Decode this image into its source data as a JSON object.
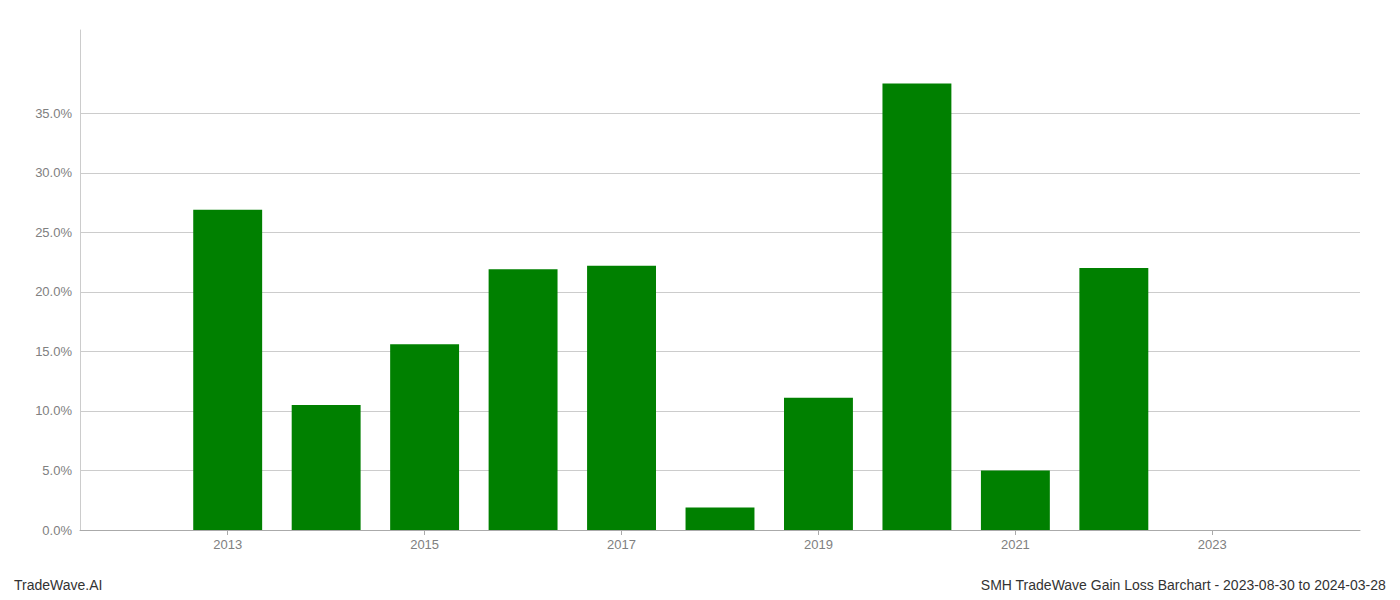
{
  "chart_data": {
    "type": "bar",
    "x": [
      2013,
      2014,
      2015,
      2016,
      2017,
      2018,
      2019,
      2020,
      2021,
      2022,
      2023
    ],
    "values": [
      0.269,
      0.105,
      0.156,
      0.219,
      0.222,
      0.019,
      0.111,
      0.375,
      0.05,
      0.22,
      0.0
    ],
    "color": "#008000",
    "xlim": [
      2011.5,
      2024.5
    ],
    "xticks": [
      2013,
      2015,
      2017,
      2019,
      2021,
      2023
    ],
    "ylim": [
      0,
      0.42
    ],
    "yticks": [
      {
        "value": 0.0,
        "label": "0.0%"
      },
      {
        "value": 0.05,
        "label": "5.0%"
      },
      {
        "value": 0.1,
        "label": "10.0%"
      },
      {
        "value": 0.15,
        "label": "15.0%"
      },
      {
        "value": 0.2,
        "label": "20.0%"
      },
      {
        "value": 0.25,
        "label": "25.0%"
      },
      {
        "value": 0.3,
        "label": "30.0%"
      },
      {
        "value": 0.35,
        "label": "35.0%"
      }
    ],
    "grid": true,
    "annotations": [
      "TradeWave.AI",
      "SMH TradeWave Gain Loss Barchart - 2023-08-30 to 2024-03-28"
    ]
  }
}
